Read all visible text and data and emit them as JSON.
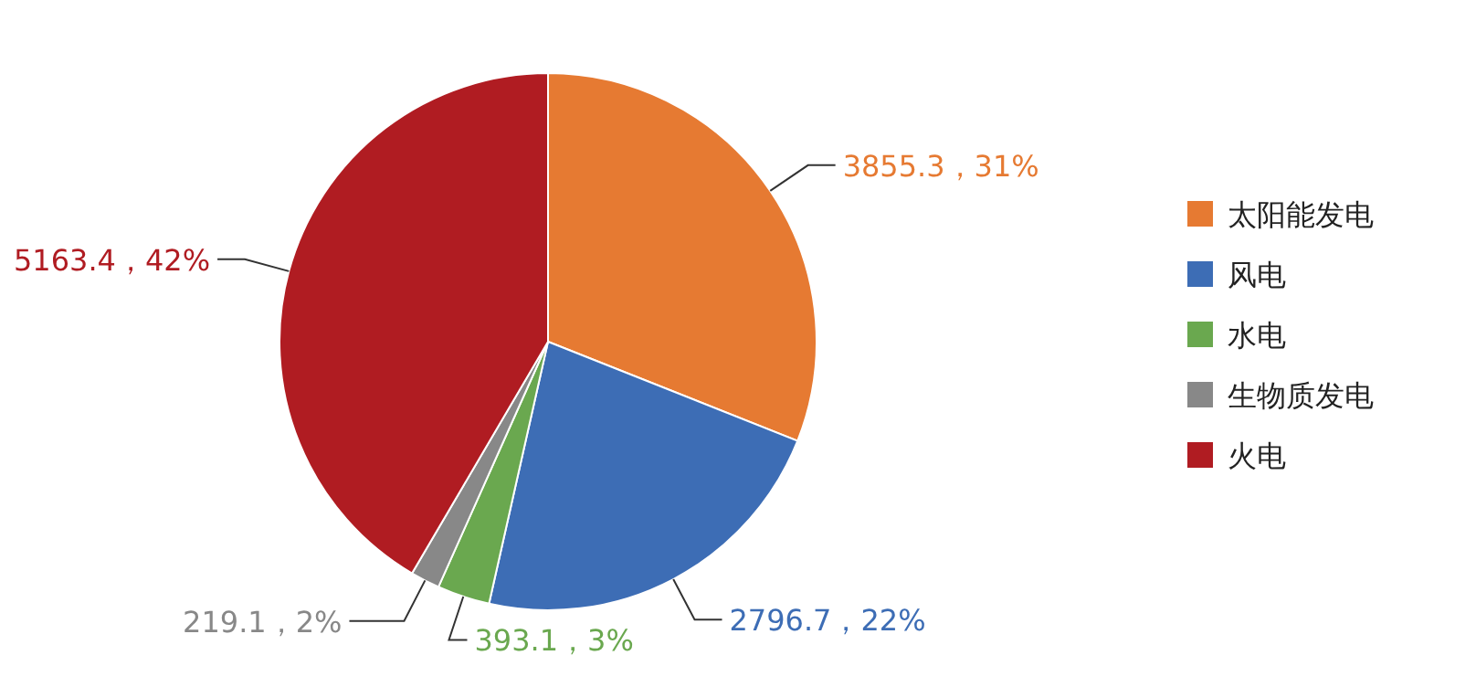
{
  "chart_data": {
    "type": "pie",
    "categories": [
      "太阳能发电",
      "风电",
      "水电",
      "生物质发电",
      "火电"
    ],
    "values": [
      3855.3,
      2796.7,
      393.1,
      219.1,
      5163.4
    ],
    "colors": [
      "#e67a32",
      "#3d6db5",
      "#6aa84f",
      "#888888",
      "#b01c22"
    ],
    "value_labels": [
      "3855.3，31%",
      "2796.7，22%",
      "393.1，3%",
      "219.1，2%",
      "5163.4，42%"
    ],
    "legend": "right"
  }
}
